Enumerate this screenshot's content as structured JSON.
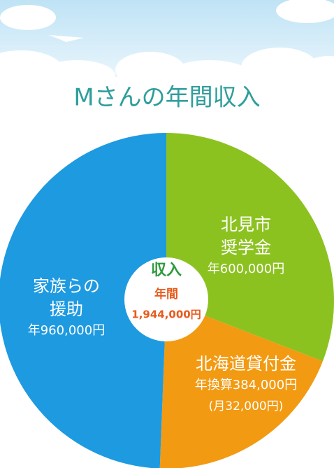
{
  "chart_data": {
    "type": "pie",
    "title": "Mさんの年間収入",
    "categories": [
      [
        "北見市",
        "奨学金"
      ],
      [
        "北海道貸付金"
      ],
      [
        "家族らの",
        "援助"
      ]
    ],
    "values": [
      600000,
      384000,
      960000
    ],
    "value_labels": [
      "年600,000円",
      "年換算384,000円",
      "年960,000円"
    ],
    "colors": [
      "#8cc220",
      "#f29a12",
      "#1e9ae0"
    ],
    "annotations": [
      null,
      "(月32,000円)",
      null
    ],
    "center": {
      "title": "収入",
      "subtitle": "年間",
      "total": "1,944,000円"
    }
  }
}
